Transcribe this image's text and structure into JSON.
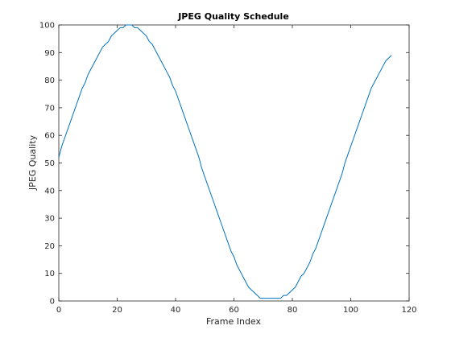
{
  "chart_data": {
    "type": "line",
    "title": "JPEG Quality Schedule",
    "xlabel": "Frame Index",
    "ylabel": "JPEG Quality",
    "xlim": [
      0,
      120
    ],
    "ylim": [
      0,
      100
    ],
    "xticks": [
      "0",
      "20",
      "40",
      "60",
      "80",
      "100",
      "120"
    ],
    "yticks": [
      "0",
      "10",
      "20",
      "30",
      "40",
      "50",
      "60",
      "70",
      "80",
      "90",
      "100"
    ],
    "grid": false,
    "legend": "none",
    "line_color": "#0072BD",
    "series": [
      {
        "x": [
          0,
          1,
          2,
          3,
          4,
          5,
          6,
          7,
          8,
          9,
          10,
          11,
          12,
          13,
          14,
          15,
          16,
          17,
          18,
          19,
          20,
          21,
          22,
          23,
          24,
          25,
          26,
          27,
          28,
          29,
          30,
          31,
          32,
          33,
          34,
          35,
          36,
          37,
          38,
          39,
          40,
          41,
          42,
          43,
          44,
          45,
          46,
          47,
          48,
          49,
          50,
          51,
          52,
          53,
          54,
          55,
          56,
          57,
          58,
          59,
          60,
          61,
          62,
          63,
          64,
          65,
          66,
          67,
          68,
          69,
          70,
          71,
          72,
          73,
          74,
          75,
          76,
          77,
          78,
          79,
          80,
          81,
          82,
          83,
          84,
          85,
          86,
          87,
          88,
          89,
          90,
          91,
          92,
          93,
          94,
          95,
          96,
          97,
          98,
          99,
          100,
          101,
          102,
          103,
          104,
          105,
          106,
          107,
          108,
          109,
          110,
          111,
          112,
          113,
          114
        ],
        "y": [
          52,
          56,
          59,
          62,
          65,
          68,
          71,
          74,
          77,
          79,
          82,
          84,
          86,
          88,
          90,
          92,
          93,
          94,
          96,
          97,
          98,
          99,
          99,
          100,
          100,
          100,
          99,
          99,
          98,
          97,
          96,
          94,
          93,
          91,
          89,
          87,
          85,
          83,
          81,
          78,
          76,
          73,
          70,
          67,
          64,
          61,
          58,
          55,
          52,
          48,
          45,
          42,
          39,
          36,
          33,
          30,
          27,
          24,
          21,
          18,
          16,
          13,
          11,
          9,
          7,
          5,
          4,
          3,
          2,
          1,
          1,
          1,
          1,
          1,
          1,
          1,
          1,
          2,
          2,
          3,
          4,
          5,
          7,
          9,
          10,
          12,
          14,
          17,
          19,
          22,
          25,
          28,
          31,
          34,
          37,
          40,
          43,
          46,
          50,
          53,
          56,
          59,
          62,
          65,
          68,
          71,
          74,
          77,
          79,
          81,
          83,
          85,
          87,
          88,
          89
        ]
      }
    ]
  }
}
